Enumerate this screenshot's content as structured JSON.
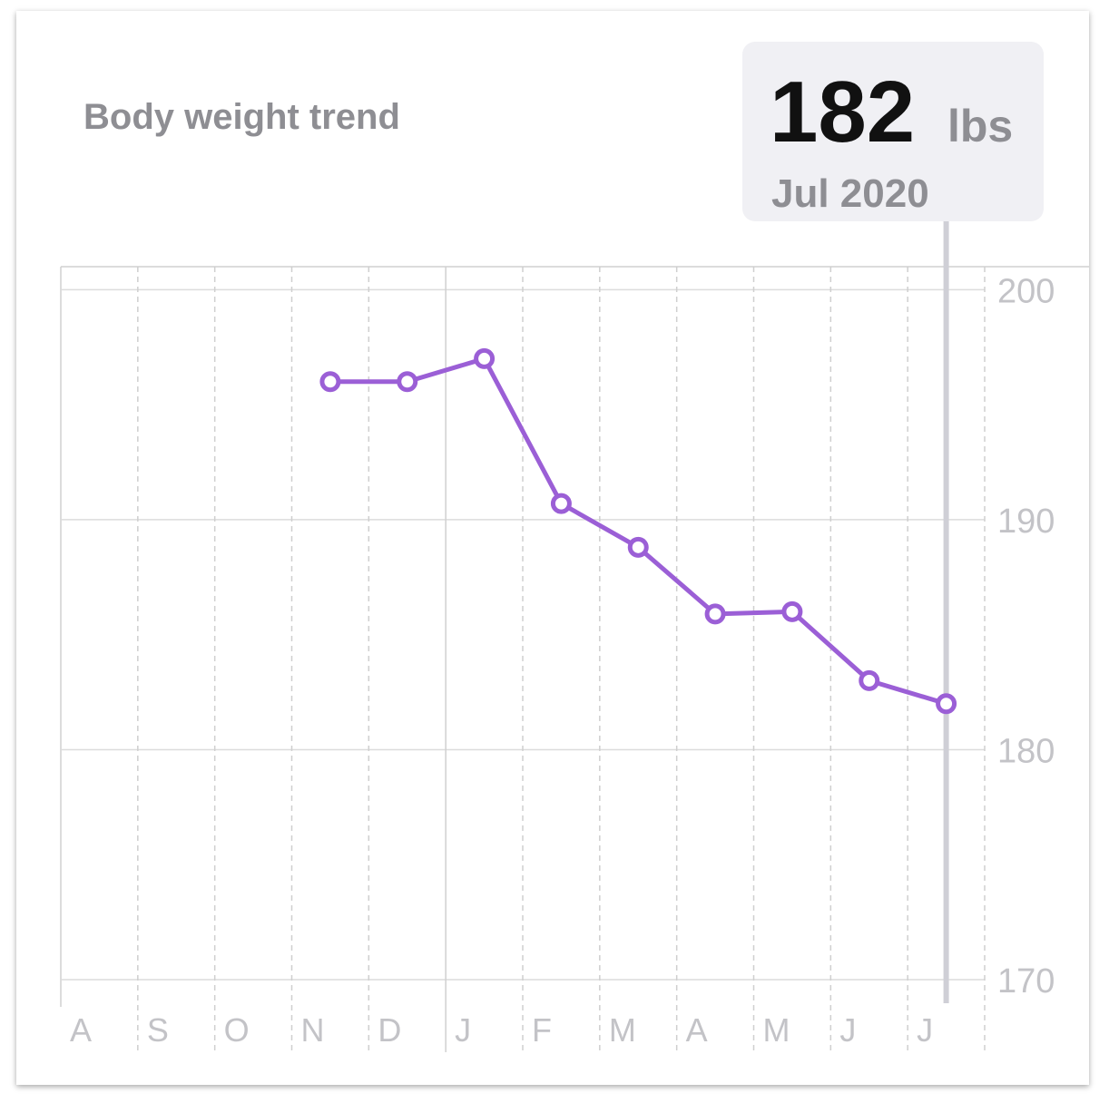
{
  "chart_data": {
    "type": "line",
    "title": "Body weight trend",
    "categories": [
      "A",
      "S",
      "O",
      "N",
      "D",
      "J",
      "F",
      "M",
      "A",
      "M",
      "J",
      "J"
    ],
    "values": [
      null,
      null,
      null,
      196,
      196,
      197,
      190.7,
      188.8,
      185.9,
      186,
      183,
      182
    ],
    "color": "#9b5fd6",
    "ylim": [
      170,
      201
    ],
    "yticks": [
      170,
      180,
      190,
      200
    ],
    "grid": true,
    "selected": {
      "unit": "lbs",
      "label": "Jul 2020"
    }
  }
}
